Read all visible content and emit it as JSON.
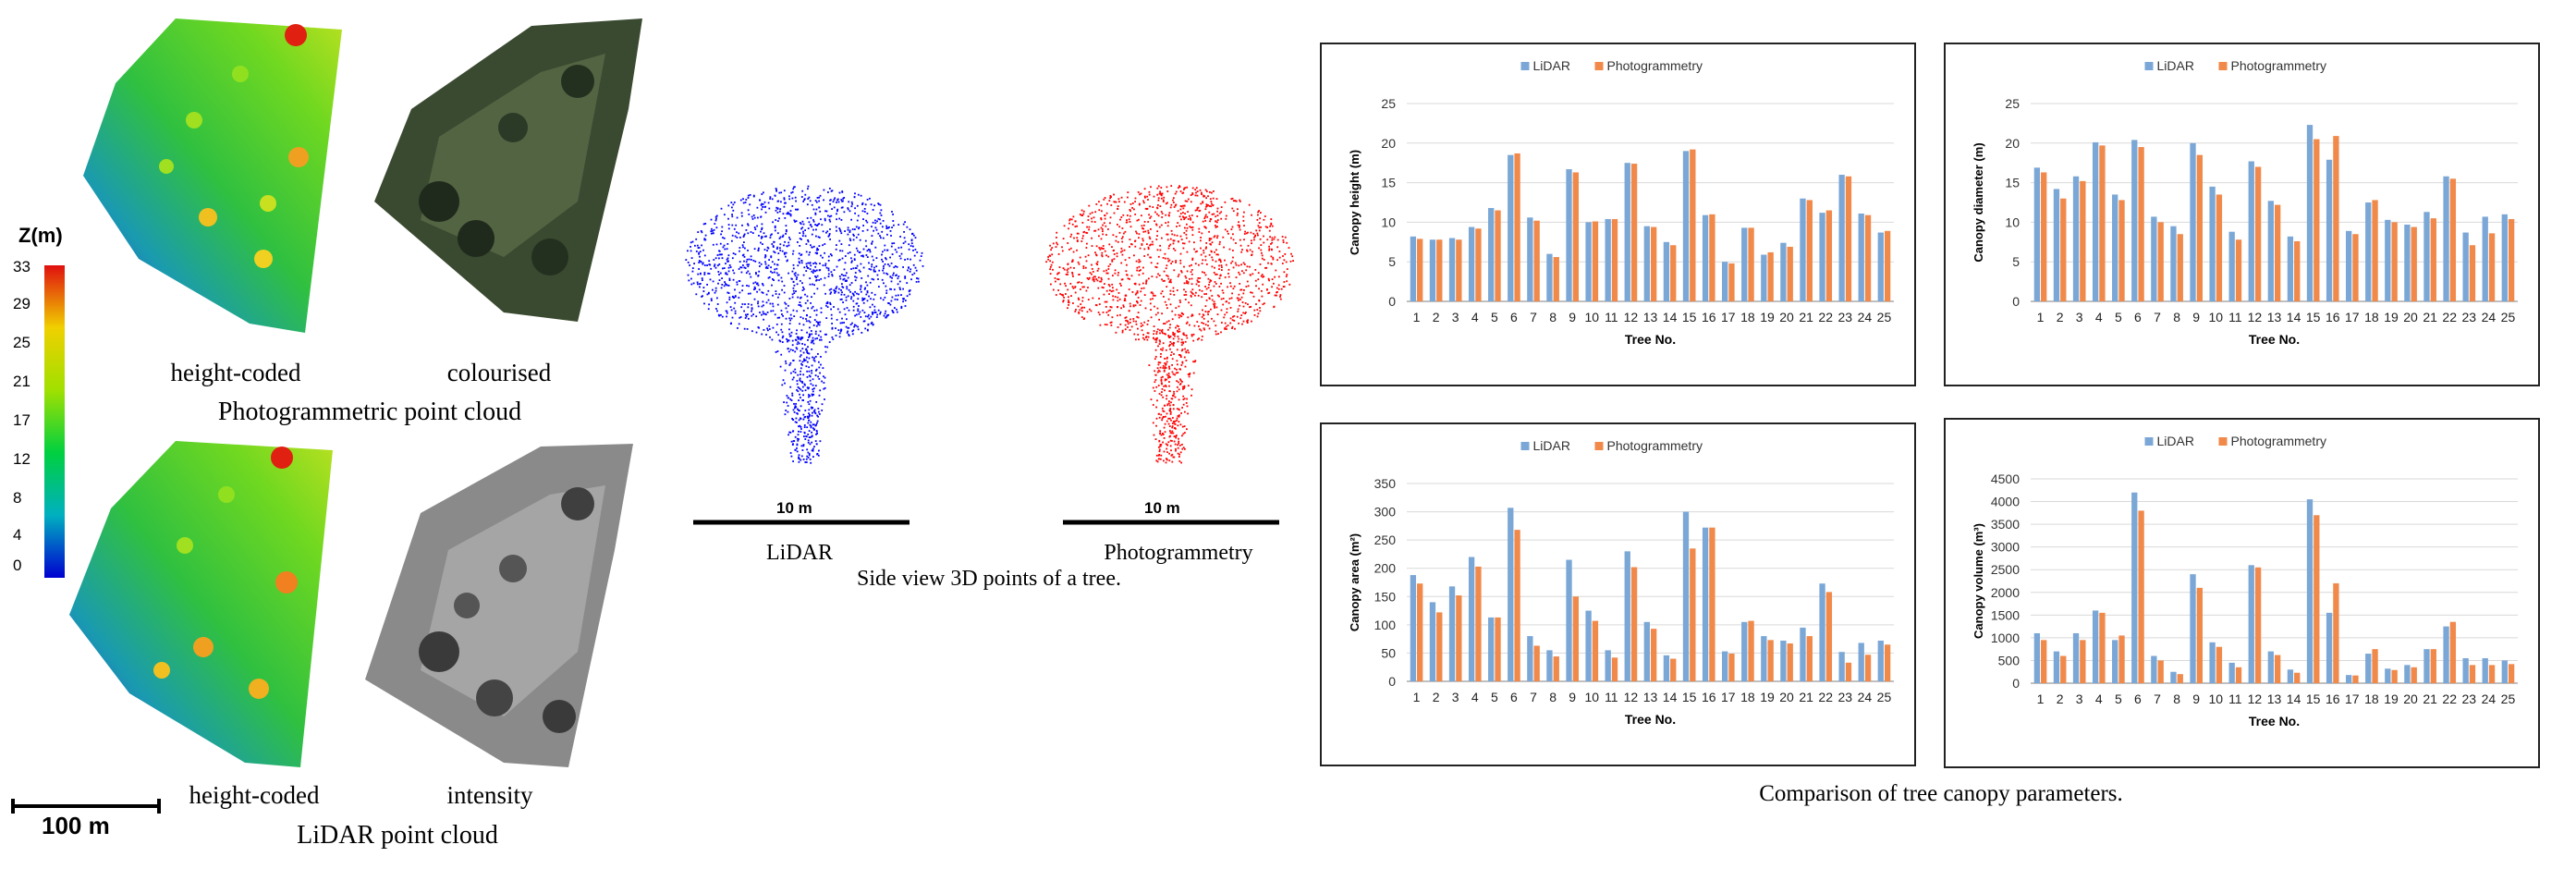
{
  "left_panel": {
    "colorbar_title": "Z(m)",
    "colorbar_ticks": [
      "33",
      "29",
      "25",
      "21",
      "17",
      "12",
      "8",
      "4",
      "0"
    ],
    "photo_caption_left": "height-coded",
    "photo_caption_right": "colourised",
    "photo_title": "Photogrammetric point cloud",
    "lidar_caption_left": "height-coded",
    "lidar_caption_right": "intensity",
    "lidar_title": "LiDAR point cloud",
    "scale_label": "100 m"
  },
  "middle_panel": {
    "lidar_scale": "10 m",
    "photo_scale": "10 m",
    "lidar_label": "LiDAR",
    "photo_label": "Photogrammetry",
    "caption": "Side view 3D points of a tree."
  },
  "right_caption": "Comparison of tree canopy parameters.",
  "colors": {
    "lidar": "#7ba7d6",
    "photogrammetry": "#f0894a",
    "lidar_points": "#0000ff",
    "photo_points": "#ff0000"
  },
  "chart_data": [
    {
      "type": "bar",
      "categories": [
        "1",
        "2",
        "3",
        "4",
        "5",
        "6",
        "7",
        "8",
        "9",
        "10",
        "11",
        "12",
        "13",
        "14",
        "15",
        "16",
        "17",
        "18",
        "19",
        "20",
        "21",
        "22",
        "23",
        "24",
        "25"
      ],
      "series": [
        {
          "name": "LiDAR",
          "values": [
            8.2,
            7.8,
            8.0,
            9.4,
            11.8,
            18.5,
            10.6,
            6.0,
            16.7,
            10.0,
            10.4,
            17.5,
            9.5,
            7.5,
            19.0,
            10.9,
            5.0,
            9.3,
            5.9,
            7.4,
            13.0,
            11.2,
            16.0,
            11.1,
            8.7
          ]
        },
        {
          "name": "Photogrammetry",
          "values": [
            7.9,
            7.8,
            7.8,
            9.2,
            11.5,
            18.7,
            10.2,
            5.6,
            16.3,
            10.1,
            10.4,
            17.4,
            9.4,
            7.1,
            19.2,
            11.0,
            4.8,
            9.3,
            6.2,
            6.9,
            12.8,
            11.5,
            15.8,
            10.9,
            8.9
          ]
        }
      ],
      "xlabel": "Tree No.",
      "ylabel": "Canopy height (m)",
      "ylim": [
        0,
        25
      ],
      "yticks": [
        "0",
        "5",
        "10",
        "15",
        "20",
        "25"
      ],
      "grid": true,
      "legend": "top-center"
    },
    {
      "type": "bar",
      "categories": [
        "1",
        "2",
        "3",
        "4",
        "5",
        "6",
        "7",
        "8",
        "9",
        "10",
        "11",
        "12",
        "13",
        "14",
        "15",
        "16",
        "17",
        "18",
        "19",
        "20",
        "21",
        "22",
        "23",
        "24",
        "25"
      ],
      "series": [
        {
          "name": "LiDAR",
          "values": [
            16.9,
            14.2,
            15.8,
            20.1,
            13.5,
            20.4,
            10.7,
            9.5,
            20.0,
            14.5,
            8.8,
            17.7,
            12.7,
            8.2,
            22.3,
            17.9,
            8.9,
            12.5,
            10.3,
            9.7,
            11.3,
            15.8,
            8.7,
            10.7,
            11.0
          ]
        },
        {
          "name": "Photogrammetry",
          "values": [
            16.3,
            13.0,
            15.2,
            19.7,
            12.8,
            19.5,
            10.0,
            8.5,
            18.5,
            13.5,
            7.8,
            17.0,
            12.2,
            7.6,
            20.5,
            20.9,
            8.5,
            12.8,
            10.0,
            9.4,
            10.5,
            15.5,
            7.1,
            8.6,
            10.4
          ]
        }
      ],
      "xlabel": "Tree No.",
      "ylabel": "Canopy diameter (m)",
      "ylim": [
        0,
        25
      ],
      "yticks": [
        "0",
        "5",
        "10",
        "15",
        "20",
        "25"
      ],
      "grid": true,
      "legend": "top-center"
    },
    {
      "type": "bar",
      "categories": [
        "1",
        "2",
        "3",
        "4",
        "5",
        "6",
        "7",
        "8",
        "9",
        "10",
        "11",
        "12",
        "13",
        "14",
        "15",
        "16",
        "17",
        "18",
        "19",
        "20",
        "21",
        "22",
        "23",
        "24",
        "25"
      ],
      "series": [
        {
          "name": "LiDAR",
          "values": [
            188,
            140,
            168,
            220,
            113,
            307,
            80,
            55,
            215,
            125,
            55,
            230,
            105,
            46,
            300,
            272,
            53,
            105,
            80,
            72,
            95,
            173,
            52,
            68,
            72
          ]
        },
        {
          "name": "Photogrammetry",
          "values": [
            173,
            122,
            152,
            203,
            113,
            268,
            63,
            44,
            150,
            107,
            42,
            202,
            93,
            40,
            235,
            272,
            49,
            107,
            73,
            67,
            80,
            158,
            33,
            47,
            65
          ]
        }
      ],
      "xlabel": "Tree No.",
      "ylabel": "Canopy area (m²)",
      "ylim": [
        0,
        350
      ],
      "yticks": [
        "0",
        "50",
        "100",
        "150",
        "200",
        "250",
        "300",
        "350"
      ],
      "grid": true,
      "legend": "top-center"
    },
    {
      "type": "bar",
      "categories": [
        "1",
        "2",
        "3",
        "4",
        "5",
        "6",
        "7",
        "8",
        "9",
        "10",
        "11",
        "12",
        "13",
        "14",
        "15",
        "16",
        "17",
        "18",
        "19",
        "20",
        "21",
        "22",
        "23",
        "24",
        "25"
      ],
      "series": [
        {
          "name": "LiDAR",
          "values": [
            1100,
            700,
            1100,
            1600,
            950,
            4200,
            600,
            250,
            2400,
            900,
            450,
            2600,
            700,
            300,
            4050,
            1550,
            180,
            650,
            320,
            400,
            750,
            1250,
            550,
            550,
            500
          ]
        },
        {
          "name": "Photogrammetry",
          "values": [
            950,
            600,
            950,
            1550,
            1050,
            3800,
            500,
            200,
            2100,
            800,
            350,
            2550,
            620,
            230,
            3700,
            2200,
            170,
            750,
            290,
            350,
            750,
            1350,
            400,
            400,
            420
          ]
        }
      ],
      "xlabel": "Tree No.",
      "ylabel": "Canopy volume (m³)",
      "ylim": [
        0,
        4500
      ],
      "yticks": [
        "0",
        "500",
        "1000",
        "1500",
        "2000",
        "2500",
        "3000",
        "3500",
        "4000",
        "4500"
      ],
      "grid": true,
      "legend": "top-center"
    }
  ]
}
